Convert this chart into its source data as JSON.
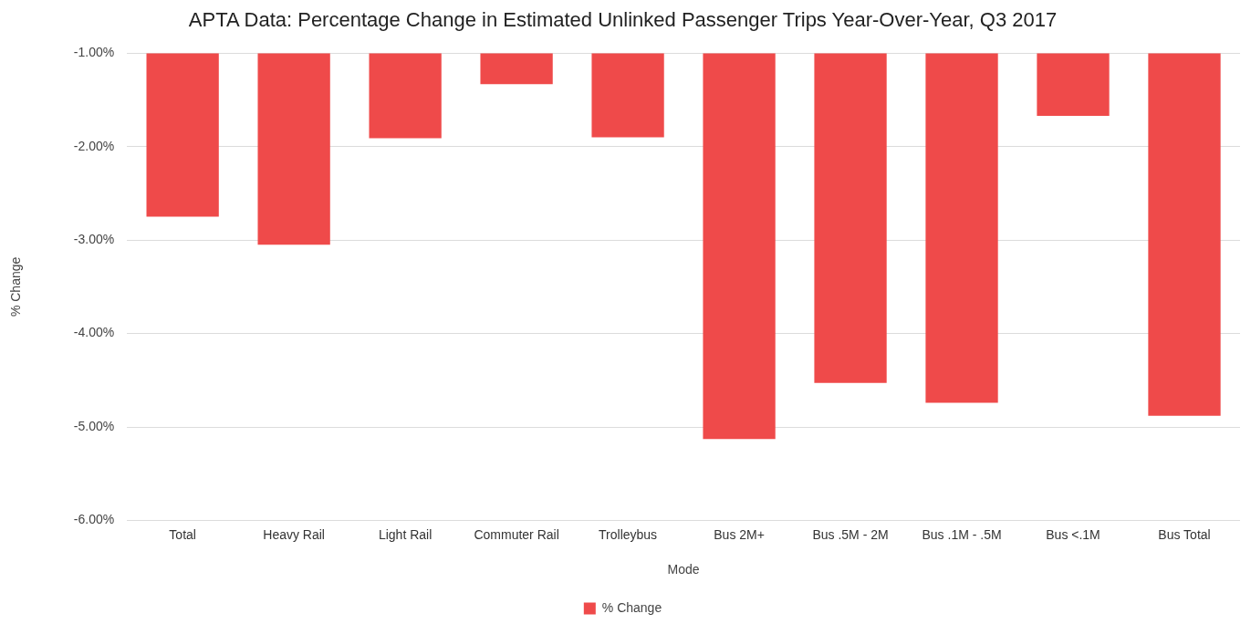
{
  "chart_data": {
    "type": "bar",
    "title": "APTA Data: Percentage Change in Estimated Unlinked Passenger Trips Year-Over-Year, Q3 2017",
    "xlabel": "Mode",
    "ylabel": "% Change",
    "categories": [
      "Total",
      "Heavy Rail",
      "Light Rail",
      "Commuter Rail",
      "Trolleybus",
      "Bus 2M+",
      "Bus .5M - 2M",
      "Bus .1M - .5M",
      "Bus <.1M",
      "Bus Total"
    ],
    "series": [
      {
        "name": "% Change",
        "color": "#ef4a4a",
        "values": [
          -2.75,
          -3.05,
          -1.91,
          -1.33,
          -1.9,
          -5.13,
          -4.53,
          -4.74,
          -1.67,
          -4.88
        ]
      }
    ],
    "ylim": [
      -6,
      -1
    ],
    "yticks": [
      {
        "value": -6,
        "label": "-6.00%"
      },
      {
        "value": -5,
        "label": "-5.00%"
      },
      {
        "value": -4,
        "label": "-4.00%"
      },
      {
        "value": -3,
        "label": "-3.00%"
      },
      {
        "value": -2,
        "label": "-2.00%"
      },
      {
        "value": -1,
        "label": "-1.00%"
      }
    ],
    "grid": "y",
    "legend": "bottom"
  }
}
